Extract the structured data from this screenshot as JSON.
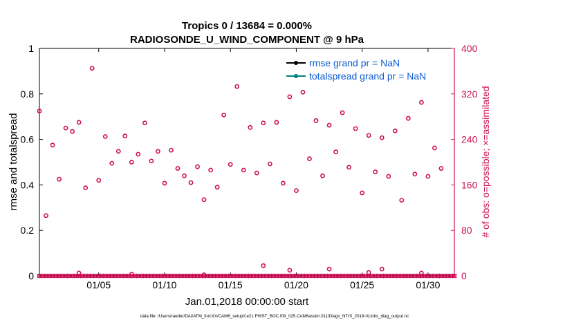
{
  "chart_data": {
    "type": "scatter",
    "title_line1": "Tropics 0 / 13684 = 0.000%",
    "title_line2": "RADIOSONDE_U_WIND_COMPONENT @ 9 hPa",
    "xlabel": "Jan.01,2018 00:00:00 start",
    "ylabel_left": "rmse and totalspread",
    "ylabel_right": "# of obs: o=possible; ×=assimilated",
    "xlim": [
      0.5,
      32
    ],
    "ylim_left": [
      0,
      1
    ],
    "ylim_right": [
      0,
      400
    ],
    "x_ticks": [
      {
        "value": 5,
        "label": "01/05"
      },
      {
        "value": 10,
        "label": "01/10"
      },
      {
        "value": 15,
        "label": "01/15"
      },
      {
        "value": 20,
        "label": "01/20"
      },
      {
        "value": 25,
        "label": "01/25"
      },
      {
        "value": 30,
        "label": "01/30"
      }
    ],
    "y_ticks_left": [
      {
        "value": 0,
        "label": "0"
      },
      {
        "value": 0.2,
        "label": "0.2"
      },
      {
        "value": 0.4,
        "label": "0.4"
      },
      {
        "value": 0.6,
        "label": "0.6"
      },
      {
        "value": 0.8,
        "label": "0.8"
      },
      {
        "value": 1,
        "label": "1"
      }
    ],
    "y_ticks_right": [
      {
        "value": 0,
        "label": "0"
      },
      {
        "value": 80,
        "label": "80"
      },
      {
        "value": 160,
        "label": "160"
      },
      {
        "value": 240,
        "label": "240"
      },
      {
        "value": 320,
        "label": "320"
      },
      {
        "value": 400,
        "label": "400"
      }
    ],
    "legend": [
      {
        "label": "rmse grand pr = NaN",
        "color": "#000000"
      },
      {
        "label": "totalspread grand pr = NaN",
        "color": "#008080"
      }
    ],
    "series": [
      {
        "name": "obs possible",
        "marker": "o",
        "color": "#CC1055",
        "points": [
          [
            0.5,
            290
          ],
          [
            1.0,
            106
          ],
          [
            1.5,
            230
          ],
          [
            2.0,
            170
          ],
          [
            2.5,
            260
          ],
          [
            3.0,
            254
          ],
          [
            3.5,
            270
          ],
          [
            4.0,
            155
          ],
          [
            4.5,
            365
          ],
          [
            5.0,
            168
          ],
          [
            5.5,
            245
          ],
          [
            6.0,
            198
          ],
          [
            6.5,
            219
          ],
          [
            7.0,
            246
          ],
          [
            7.5,
            200
          ],
          [
            8.0,
            214
          ],
          [
            8.5,
            269
          ],
          [
            9.0,
            202
          ],
          [
            9.5,
            219
          ],
          [
            10.0,
            163
          ],
          [
            10.5,
            221
          ],
          [
            11.0,
            189
          ],
          [
            11.5,
            176
          ],
          [
            12.0,
            164
          ],
          [
            12.5,
            192
          ],
          [
            13.0,
            134
          ],
          [
            13.5,
            186
          ],
          [
            14.0,
            156
          ],
          [
            14.5,
            283
          ],
          [
            15.0,
            196
          ],
          [
            15.5,
            333
          ],
          [
            16.0,
            186
          ],
          [
            16.5,
            261
          ],
          [
            17.0,
            181
          ],
          [
            17.5,
            269
          ],
          [
            18.0,
            197
          ],
          [
            18.5,
            270
          ],
          [
            19.0,
            163
          ],
          [
            19.5,
            315
          ],
          [
            20.0,
            150
          ],
          [
            20.5,
            323
          ],
          [
            21.0,
            206
          ],
          [
            21.5,
            273
          ],
          [
            22.0,
            176
          ],
          [
            22.5,
            265
          ],
          [
            23.0,
            218
          ],
          [
            23.5,
            287
          ],
          [
            24.0,
            191
          ],
          [
            24.5,
            259
          ],
          [
            25.0,
            146
          ],
          [
            25.5,
            247
          ],
          [
            26.0,
            183
          ],
          [
            26.5,
            243
          ],
          [
            27.0,
            175
          ],
          [
            27.5,
            255
          ],
          [
            28.0,
            133
          ],
          [
            28.5,
            277
          ],
          [
            29.0,
            179
          ],
          [
            29.5,
            305
          ],
          [
            30.0,
            175
          ],
          [
            30.5,
            225
          ],
          [
            31.0,
            189
          ],
          [
            3.5,
            5
          ],
          [
            7.5,
            3
          ],
          [
            13.0,
            2
          ],
          [
            17.5,
            18
          ],
          [
            19.5,
            10
          ],
          [
            22.5,
            12
          ],
          [
            25.5,
            6
          ],
          [
            26.5,
            12
          ],
          [
            29.5,
            5
          ]
        ]
      },
      {
        "name": "obs assimilated",
        "marker": "x",
        "color": "#CC1055",
        "values": "0 at every time step"
      }
    ]
  },
  "footer_text": "data file: /Users/raeder/DAI/ATM_forcXX/CAM6_setup/f.e21.FHIST_BGC.f09_025.CAM6assim.011/Diags_NTrS_2018-01/obs_diag_output.nc"
}
